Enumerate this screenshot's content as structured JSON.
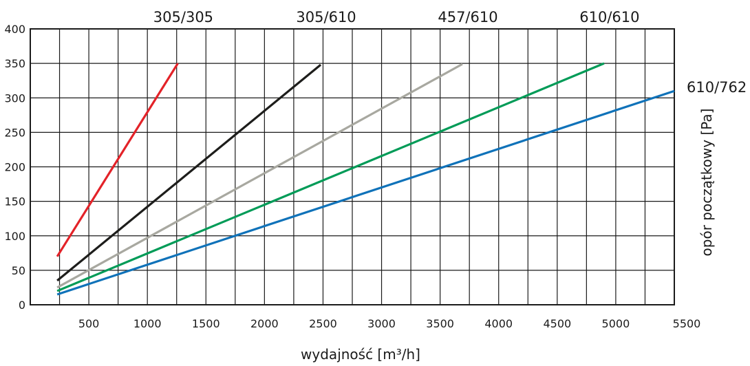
{
  "chart_data": {
    "type": "line",
    "xlabel": "wydajność  [m³/h]",
    "ylabel": "opór początkowy [Pa]",
    "xlim": [
      0,
      5500
    ],
    "ylim": [
      0,
      400
    ],
    "grid": true,
    "x_grid_step": 250,
    "y_grid_step": 50,
    "x_ticks": [
      "500",
      "1000",
      "1500",
      "2000",
      "2500",
      "3000",
      "3500",
      "4000",
      "4500",
      "5000",
      "5500"
    ],
    "x_tick_values": [
      500,
      1000,
      1500,
      2000,
      2500,
      3000,
      3500,
      4000,
      4500,
      5000,
      5500
    ],
    "y_ticks": [
      "0",
      "50",
      "100",
      "150",
      "200",
      "250",
      "300",
      "350",
      "400"
    ],
    "y_tick_values": [
      0,
      50,
      100,
      150,
      200,
      250,
      300,
      350,
      400
    ],
    "series": [
      {
        "name": "305/305",
        "color": "#e32228",
        "x": [
          230,
          1260
        ],
        "y": [
          70,
          350
        ]
      },
      {
        "name": "305/610",
        "color": "#1d1d1b",
        "x": [
          230,
          2480
        ],
        "y": [
          35,
          348
        ]
      },
      {
        "name": "457/610",
        "color": "#a8a8a0",
        "x": [
          230,
          3690
        ],
        "y": [
          25,
          349
        ]
      },
      {
        "name": "610/610",
        "color": "#009b57",
        "x": [
          230,
          4900
        ],
        "y": [
          20,
          350
        ]
      },
      {
        "name": "610/762",
        "color": "#0f72b9",
        "x": [
          230,
          5500
        ],
        "y": [
          15,
          310
        ]
      }
    ]
  }
}
